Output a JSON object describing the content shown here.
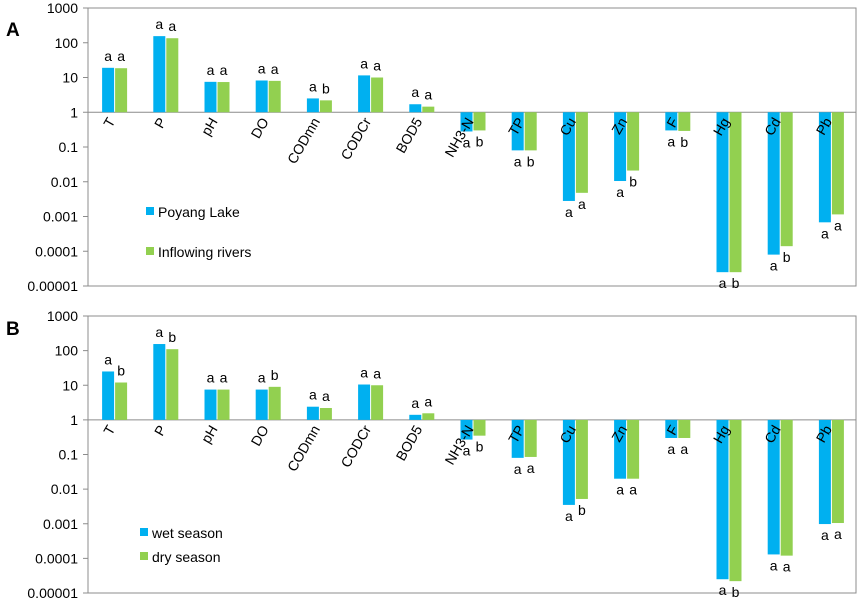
{
  "chart_data": [
    {
      "panel": "A",
      "type": "bar",
      "y_scale": "log",
      "ylim": [
        1e-05,
        1000
      ],
      "y_ticks": [
        "1000",
        "100",
        "10",
        "1",
        "0.1",
        "0.01",
        "0.001",
        "0.0001",
        "0.00001"
      ],
      "categories": [
        "T",
        "P",
        "pH",
        "DO",
        "CODmn",
        "CODCr",
        "BOD5",
        "NH3-N",
        "TP",
        "Cu",
        "Zn",
        "F",
        "Hg",
        "Cd",
        "Pb"
      ],
      "series": [
        {
          "name": "Poyang Lake",
          "color": "#00b0f0",
          "values": [
            19,
            155,
            7.5,
            8.2,
            2.5,
            11.5,
            1.7,
            0.28,
            0.08,
            0.0028,
            0.0105,
            0.3,
            2.5e-05,
            8e-05,
            0.00068
          ]
        },
        {
          "name": "Inflowing rivers",
          "color": "#92d050",
          "values": [
            18.5,
            135,
            7.4,
            8.0,
            2.2,
            10.0,
            1.45,
            0.3,
            0.08,
            0.0048,
            0.021,
            0.29,
            2.5e-05,
            0.00014,
            0.00115
          ]
        }
      ],
      "significance": [
        [
          "a",
          "a"
        ],
        [
          "a",
          "a"
        ],
        [
          "a",
          "a"
        ],
        [
          "a",
          "a"
        ],
        [
          "a",
          "b"
        ],
        [
          "a",
          "a"
        ],
        [
          "a",
          "a"
        ],
        [
          "a",
          "b"
        ],
        [
          "a",
          "b"
        ],
        [
          "a",
          "a"
        ],
        [
          "a",
          "b"
        ],
        [
          "a",
          "b"
        ],
        [
          "a",
          "b"
        ],
        [
          "a",
          "b"
        ],
        [
          "a",
          "a"
        ]
      ]
    },
    {
      "panel": "B",
      "type": "bar",
      "y_scale": "log",
      "ylim": [
        1e-05,
        1000
      ],
      "y_ticks": [
        "1000",
        "100",
        "10",
        "1",
        "0.1",
        "0.01",
        "0.001",
        "0.0001",
        "0.00001"
      ],
      "categories": [
        "T",
        "P",
        "pH",
        "DO",
        "CODmn",
        "CODCr",
        "BOD5",
        "NH3-N",
        "TP",
        "Cu",
        "Zn",
        "F",
        "Hg",
        "Cd",
        "Pb"
      ],
      "series": [
        {
          "name": "wet season",
          "color": "#00b0f0",
          "values": [
            25,
            155,
            7.5,
            7.5,
            2.4,
            10.5,
            1.4,
            0.27,
            0.08,
            0.0035,
            0.02,
            0.3,
            2.5e-05,
            0.00013,
            0.00098
          ]
        },
        {
          "name": "dry season",
          "color": "#92d050",
          "values": [
            12,
            110,
            7.5,
            9.0,
            2.2,
            10.0,
            1.55,
            0.35,
            0.085,
            0.0052,
            0.02,
            0.3,
            2.2e-05,
            0.00012,
            0.00105
          ]
        }
      ],
      "significance": [
        [
          "a",
          "b"
        ],
        [
          "a",
          "b"
        ],
        [
          "a",
          "a"
        ],
        [
          "a",
          "b"
        ],
        [
          "a",
          "a"
        ],
        [
          "a",
          "a"
        ],
        [
          "a",
          "a"
        ],
        [
          "a",
          "b"
        ],
        [
          "a",
          "a"
        ],
        [
          "a",
          "b"
        ],
        [
          "a",
          "a"
        ],
        [
          "a",
          "a"
        ],
        [
          "a",
          "b"
        ],
        [
          "a",
          "a"
        ],
        [
          "a",
          "a"
        ]
      ]
    }
  ]
}
